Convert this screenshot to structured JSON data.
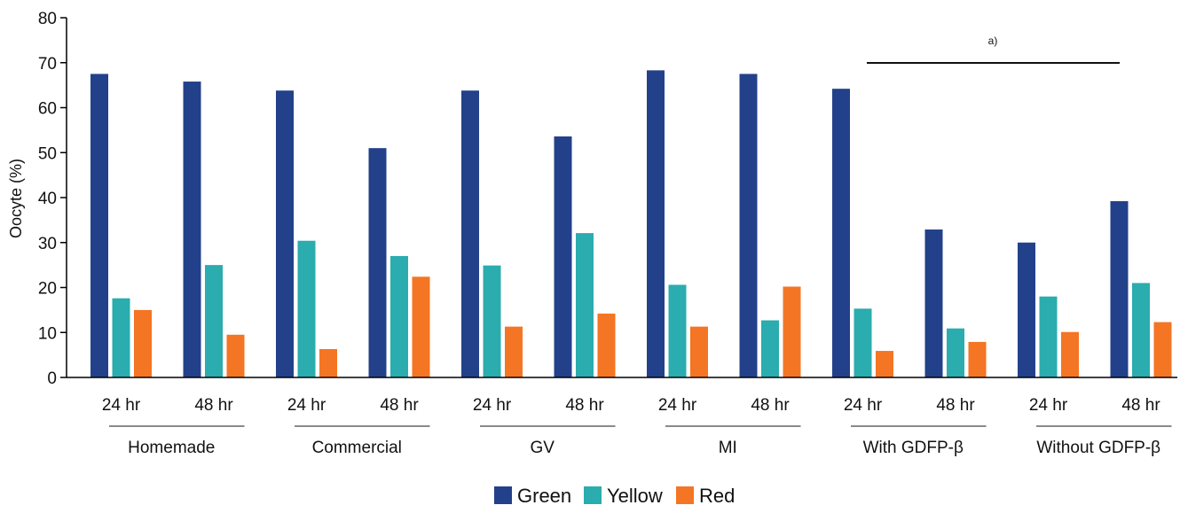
{
  "chart_data": {
    "type": "bar",
    "ylabel": "Oocyte (%)",
    "ylim": [
      0,
      80
    ],
    "yticks": [
      "0",
      "10",
      "20",
      "30",
      "40",
      "50",
      "60",
      "70",
      "80"
    ],
    "groups": [
      "Homemade",
      "Commercial",
      "GV",
      "MI",
      "With GDFP-β",
      "Without GDFP-β"
    ],
    "subgroups": [
      "24 hr",
      "48 hr"
    ],
    "series": [
      {
        "name": "Green",
        "color": "#22418a",
        "values": [
          67.5,
          65.8,
          63.8,
          51.0,
          63.8,
          53.6,
          68.3,
          67.5,
          64.2,
          32.9,
          30.0,
          39.2
        ]
      },
      {
        "name": "Yellow",
        "color": "#2bacae",
        "values": [
          17.6,
          25.0,
          30.4,
          27.0,
          24.9,
          32.1,
          20.6,
          12.7,
          15.3,
          10.9,
          18.0,
          21.0
        ]
      },
      {
        "name": "Red",
        "color": "#f47523",
        "values": [
          15.0,
          9.5,
          6.3,
          22.4,
          11.3,
          14.2,
          11.3,
          20.2,
          5.9,
          7.9,
          10.1,
          12.3
        ]
      }
    ],
    "annotation": "a)",
    "legend_position": "bottom-center"
  }
}
